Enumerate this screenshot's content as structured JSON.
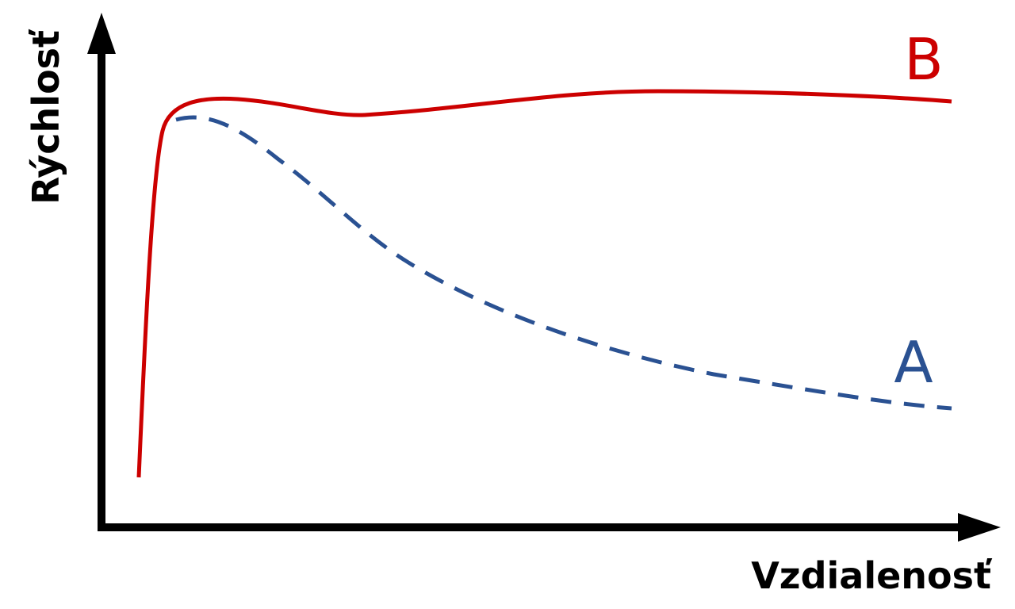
{
  "axes": {
    "y_label": "Rýchlosť",
    "x_label": "Vzdialenosť"
  },
  "curves": [
    {
      "label": "B"
    },
    {
      "label": "A"
    }
  ]
}
